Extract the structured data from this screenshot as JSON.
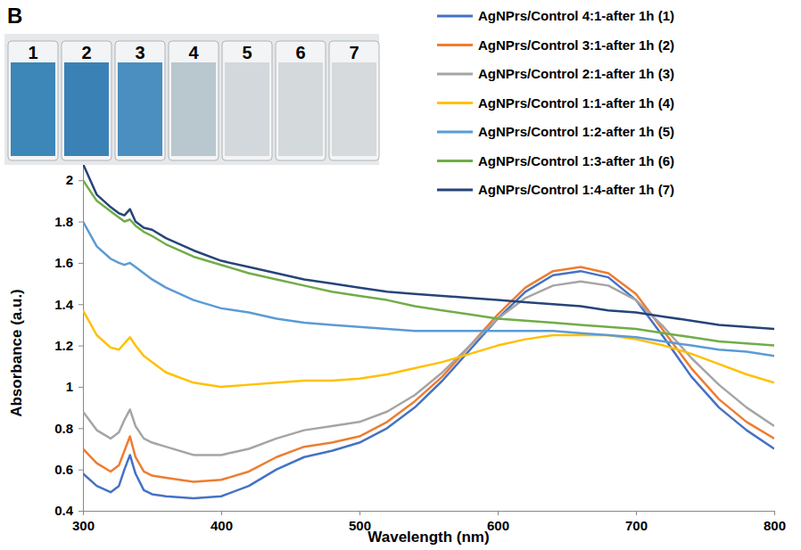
{
  "chart_data": {
    "type": "line",
    "title": "B",
    "x_label": "Wavelength (nm)",
    "y_label": "Absorbance (a.u.)",
    "annotations": [
      "1",
      "2",
      "3",
      "4",
      "5",
      "6",
      "7"
    ],
    "x": [
      300,
      310,
      320,
      326,
      330,
      334,
      338,
      344,
      350,
      360,
      380,
      400,
      420,
      440,
      460,
      480,
      500,
      520,
      540,
      560,
      580,
      600,
      620,
      640,
      660,
      680,
      700,
      720,
      740,
      760,
      780,
      800
    ],
    "xlim": [
      300,
      800
    ],
    "xticks": [
      300,
      400,
      500,
      600,
      700,
      800
    ],
    "ylim": [
      0.4,
      2.1
    ],
    "yticks": [
      0.4,
      0.6,
      0.8,
      1,
      1.2,
      1.4,
      1.6,
      1.8,
      2
    ],
    "grid": false,
    "legend": "top-right",
    "series": [
      {
        "name": "AgNPrs/Control 4:1-after 1h (1)",
        "color": "#4472c4",
        "values": [
          0.58,
          0.52,
          0.49,
          0.52,
          0.6,
          0.67,
          0.58,
          0.5,
          0.48,
          0.47,
          0.46,
          0.47,
          0.52,
          0.6,
          0.66,
          0.69,
          0.73,
          0.8,
          0.9,
          1.03,
          1.18,
          1.33,
          1.46,
          1.54,
          1.56,
          1.53,
          1.42,
          1.24,
          1.05,
          0.9,
          0.79,
          0.7
        ]
      },
      {
        "name": "AgNPrs/Control 3:1-after 1h (2)",
        "color": "#ed7d31",
        "values": [
          0.7,
          0.63,
          0.59,
          0.62,
          0.69,
          0.76,
          0.66,
          0.59,
          0.57,
          0.56,
          0.54,
          0.55,
          0.59,
          0.66,
          0.71,
          0.73,
          0.76,
          0.83,
          0.93,
          1.05,
          1.2,
          1.35,
          1.48,
          1.56,
          1.58,
          1.55,
          1.45,
          1.27,
          1.09,
          0.94,
          0.83,
          0.75
        ]
      },
      {
        "name": "AgNPrs/Control 2:1-after 1h (3)",
        "color": "#a5a5a5",
        "values": [
          0.88,
          0.79,
          0.75,
          0.78,
          0.84,
          0.89,
          0.81,
          0.75,
          0.73,
          0.71,
          0.67,
          0.67,
          0.7,
          0.75,
          0.79,
          0.81,
          0.83,
          0.88,
          0.96,
          1.07,
          1.2,
          1.33,
          1.43,
          1.49,
          1.51,
          1.49,
          1.42,
          1.29,
          1.14,
          1.01,
          0.9,
          0.81
        ]
      },
      {
        "name": "AgNPrs/Control 1:1-after 1h (4)",
        "color": "#ffc000",
        "values": [
          1.37,
          1.25,
          1.19,
          1.18,
          1.21,
          1.24,
          1.2,
          1.15,
          1.12,
          1.07,
          1.02,
          1.0,
          1.01,
          1.02,
          1.03,
          1.03,
          1.04,
          1.06,
          1.09,
          1.12,
          1.16,
          1.2,
          1.23,
          1.25,
          1.25,
          1.25,
          1.23,
          1.2,
          1.16,
          1.11,
          1.06,
          1.02
        ]
      },
      {
        "name": "AgNPrs/Control 1:2-after 1h (5)",
        "color": "#5b9bd5",
        "values": [
          1.8,
          1.68,
          1.62,
          1.6,
          1.59,
          1.6,
          1.58,
          1.55,
          1.52,
          1.48,
          1.42,
          1.38,
          1.36,
          1.33,
          1.31,
          1.3,
          1.29,
          1.28,
          1.27,
          1.27,
          1.27,
          1.27,
          1.27,
          1.27,
          1.26,
          1.25,
          1.24,
          1.22,
          1.2,
          1.18,
          1.17,
          1.15
        ]
      },
      {
        "name": "AgNPrs/Control 1:3-after 1h (6)",
        "color": "#70ad47",
        "values": [
          2.0,
          1.9,
          1.85,
          1.82,
          1.8,
          1.81,
          1.78,
          1.75,
          1.73,
          1.69,
          1.63,
          1.59,
          1.55,
          1.52,
          1.49,
          1.46,
          1.44,
          1.42,
          1.39,
          1.37,
          1.35,
          1.33,
          1.32,
          1.31,
          1.3,
          1.29,
          1.28,
          1.26,
          1.24,
          1.22,
          1.21,
          1.2
        ]
      },
      {
        "name": "AgNPrs/Control 1:4-after 1h (7)",
        "color": "#264478",
        "values": [
          2.08,
          1.93,
          1.87,
          1.84,
          1.83,
          1.86,
          1.8,
          1.77,
          1.76,
          1.72,
          1.66,
          1.61,
          1.58,
          1.55,
          1.52,
          1.5,
          1.48,
          1.46,
          1.45,
          1.44,
          1.43,
          1.42,
          1.41,
          1.4,
          1.39,
          1.37,
          1.36,
          1.34,
          1.32,
          1.3,
          1.29,
          1.28
        ]
      }
    ]
  }
}
